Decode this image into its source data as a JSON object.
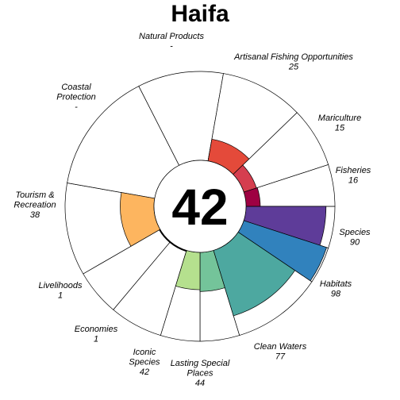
{
  "chart_data": {
    "type": "flower",
    "title": "Haifa",
    "center_score": "42",
    "value_range": [
      0,
      100
    ],
    "petals": [
      {
        "id": "species",
        "lines": [
          "Species"
        ],
        "score": "90",
        "value": 90,
        "color": "#5E3C99",
        "start": 0,
        "end": 0.111
      },
      {
        "id": "habitats",
        "lines": [
          "Habitats"
        ],
        "score": "98",
        "value": 98,
        "color": "#3182BD",
        "start": 0.111,
        "end": 0.222
      },
      {
        "id": "clean-waters",
        "lines": [
          "Clean Waters"
        ],
        "score": "77",
        "value": 77,
        "color": "#4DA8A0",
        "start": 0.222,
        "end": 0.389
      },
      {
        "id": "lasting-special-places",
        "lines": [
          "Lasting Special",
          "Places"
        ],
        "score": "44",
        "value": 44,
        "color": "#74C49A",
        "start": 0.389,
        "end": 0.472
      },
      {
        "id": "iconic-species",
        "lines": [
          "Iconic",
          "Species"
        ],
        "score": "42",
        "value": 42,
        "color": "#B5E08E",
        "start": 0.472,
        "end": 0.556
      },
      {
        "id": "economies",
        "lines": [
          "Economies"
        ],
        "score": "1",
        "value": 1,
        "color": "#E6F598",
        "start": 0.556,
        "end": 0.639
      },
      {
        "id": "livelihoods",
        "lines": [
          "Livelihoods"
        ],
        "score": "1",
        "value": 1,
        "color": "#FEE08B",
        "start": 0.639,
        "end": 0.722
      },
      {
        "id": "tourism-recreation",
        "lines": [
          "Tourism &",
          "Recreation"
        ],
        "score": "38",
        "value": 38,
        "color": "#FDB55F",
        "start": 0.722,
        "end": 0.806
      },
      {
        "id": "coastal-protection",
        "lines": [
          "Coastal",
          "Protection"
        ],
        "score": "-",
        "value": null,
        "color": "#F46D43",
        "start": 0.806,
        "end": 0.917
      },
      {
        "id": "natural-products",
        "lines": [
          "Natural Products"
        ],
        "score": "-",
        "value": null,
        "color": "#F46D43",
        "start": 0.917,
        "end": 1.0
      },
      {
        "id": "artisanal-fishing",
        "lines": [
          "Artisanal Fishing Opportunities"
        ],
        "score": "25",
        "value": 25,
        "color": "#E44A3A",
        "start": 0.0,
        "end": 0.0
      },
      {
        "id": "mariculture",
        "lines": [
          "Mariculture"
        ],
        "score": "15",
        "value": 15,
        "color": "#D53E4F",
        "start": 0,
        "end": 0
      },
      {
        "id": "fisheries",
        "lines": [
          "Fisheries"
        ],
        "score": "16",
        "value": 16,
        "color": "#9E0142",
        "start": 0,
        "end": 0
      }
    ]
  }
}
